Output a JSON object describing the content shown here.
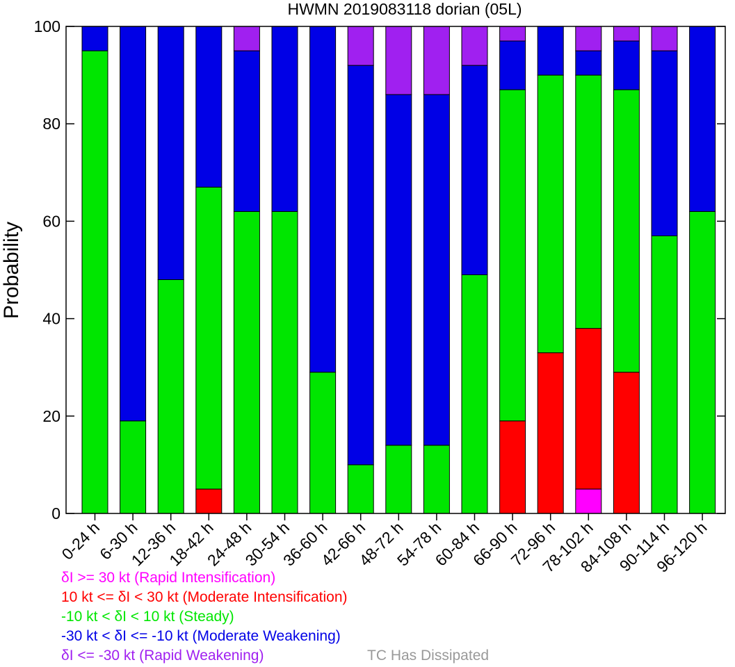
{
  "chart_data": {
    "type": "bar",
    "stacked": true,
    "title": "HWMN 2019083118 dorian (05L)",
    "ylabel": "Probability",
    "xlabel": "",
    "ylim": [
      0,
      100
    ],
    "yticks": [
      0,
      20,
      40,
      60,
      80,
      100
    ],
    "categories": [
      "0-24 h",
      "6-30 h",
      "12-36 h",
      "18-42 h",
      "24-48 h",
      "30-54 h",
      "36-60 h",
      "42-66 h",
      "48-72 h",
      "54-78 h",
      "60-84 h",
      "66-90 h",
      "72-96 h",
      "78-102 h",
      "84-108 h",
      "90-114 h",
      "96-120 h"
    ],
    "series": [
      {
        "name": "δI >= 30 kt (Rapid Intensification)",
        "color": "#ff00ff",
        "values": [
          0,
          0,
          0,
          0,
          0,
          0,
          0,
          0,
          0,
          0,
          0,
          0,
          0,
          5,
          0,
          0,
          0
        ]
      },
      {
        "name": "10 kt <= δI < 30 kt (Moderate Intensification)",
        "color": "#ff0000",
        "values": [
          0,
          0,
          0,
          5,
          0,
          0,
          0,
          0,
          0,
          0,
          0,
          19,
          33,
          33,
          29,
          0,
          0
        ]
      },
      {
        "name": "-10 kt < δI < 10 kt (Steady)",
        "color": "#00e600",
        "values": [
          95,
          19,
          48,
          62,
          62,
          62,
          29,
          10,
          14,
          14,
          49,
          68,
          57,
          52,
          58,
          57,
          62
        ]
      },
      {
        "name": "-30 kt < δI <= -10 kt (Moderate Weakening)",
        "color": "#0000e6",
        "values": [
          5,
          81,
          52,
          33,
          33,
          38,
          71,
          82,
          72,
          72,
          43,
          10,
          10,
          5,
          10,
          38,
          38
        ]
      },
      {
        "name": "δI <= -30 kt (Rapid Weakening)",
        "color": "#a020f0",
        "values": [
          0,
          0,
          0,
          0,
          5,
          0,
          0,
          8,
          14,
          14,
          8,
          3,
          0,
          5,
          3,
          5,
          0
        ]
      }
    ],
    "extra_legend": {
      "name": "TC Has Dissipated",
      "color": "#999999"
    },
    "grid": false,
    "legend_position": "bottom-left"
  }
}
